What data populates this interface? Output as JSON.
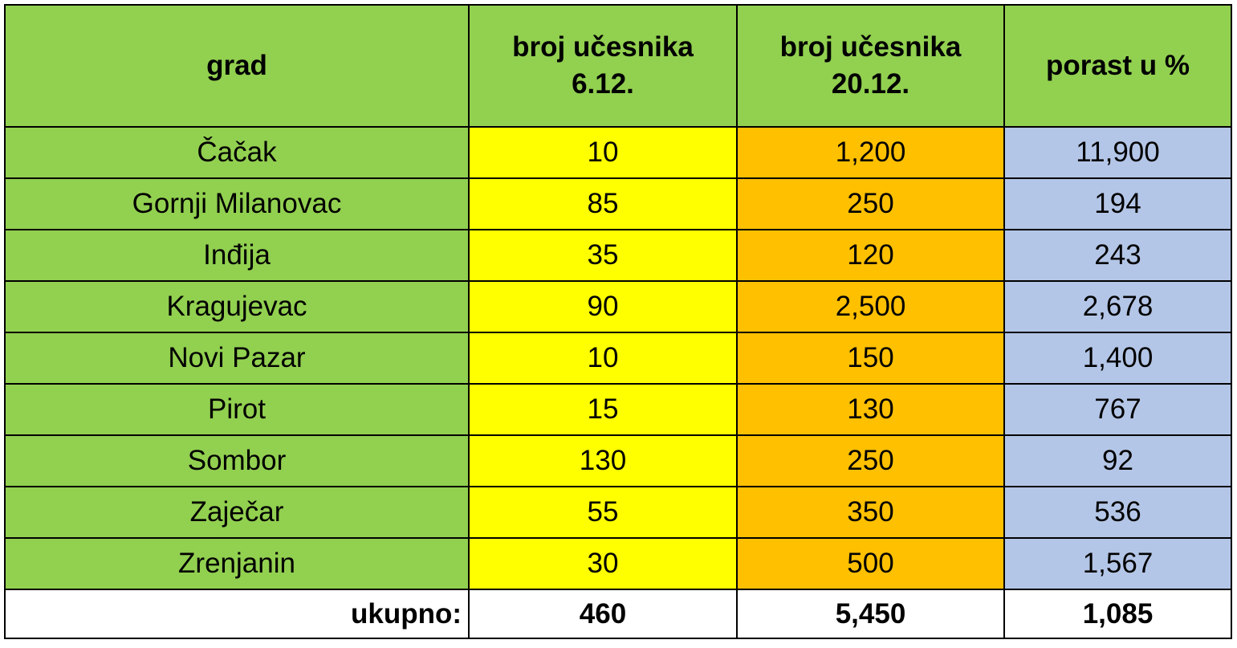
{
  "table": {
    "header": [
      [
        "grad"
      ],
      [
        "broj učesnika",
        "6.12."
      ],
      [
        "broj učesnika",
        "20.12."
      ],
      [
        "porast u %"
      ]
    ],
    "rows": [
      [
        "Čačak",
        "10",
        "1,200",
        "11,900"
      ],
      [
        "Gornji Milanovac",
        "85",
        "250",
        "194"
      ],
      [
        "Inđija",
        "35",
        "120",
        "243"
      ],
      [
        "Kragujevac",
        "90",
        "2,500",
        "2,678"
      ],
      [
        "Novi Pazar",
        "10",
        "150",
        "1,400"
      ],
      [
        "Pirot",
        "15",
        "130",
        "767"
      ],
      [
        "Sombor",
        "130",
        "250",
        "92"
      ],
      [
        "Zaječar",
        "55",
        "350",
        "536"
      ],
      [
        "Zrenjanin",
        "30",
        "500",
        "1,567"
      ]
    ],
    "total": [
      "ukupno:",
      "460",
      "5,450",
      "1,085"
    ]
  }
}
